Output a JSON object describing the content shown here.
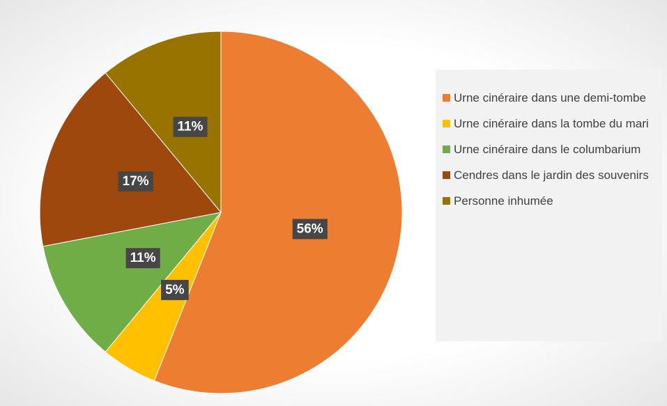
{
  "chart_data": {
    "type": "pie",
    "categories": [
      "Urne cinéraire dans une demi-tombe",
      "Urne cinéraire dans la tombe du mari",
      "Urne cinéraire dans le columbarium",
      "Cendres dans le jardin des souvenirs",
      "Personne inhumée"
    ],
    "values": [
      56,
      5,
      11,
      17,
      11
    ],
    "value_labels": [
      "56%",
      "5%",
      "11%",
      "17%",
      "11%"
    ],
    "colors": [
      "#ED7D31",
      "#FFC000",
      "#70AD47",
      "#9E480E",
      "#997300"
    ],
    "legend": "right"
  }
}
